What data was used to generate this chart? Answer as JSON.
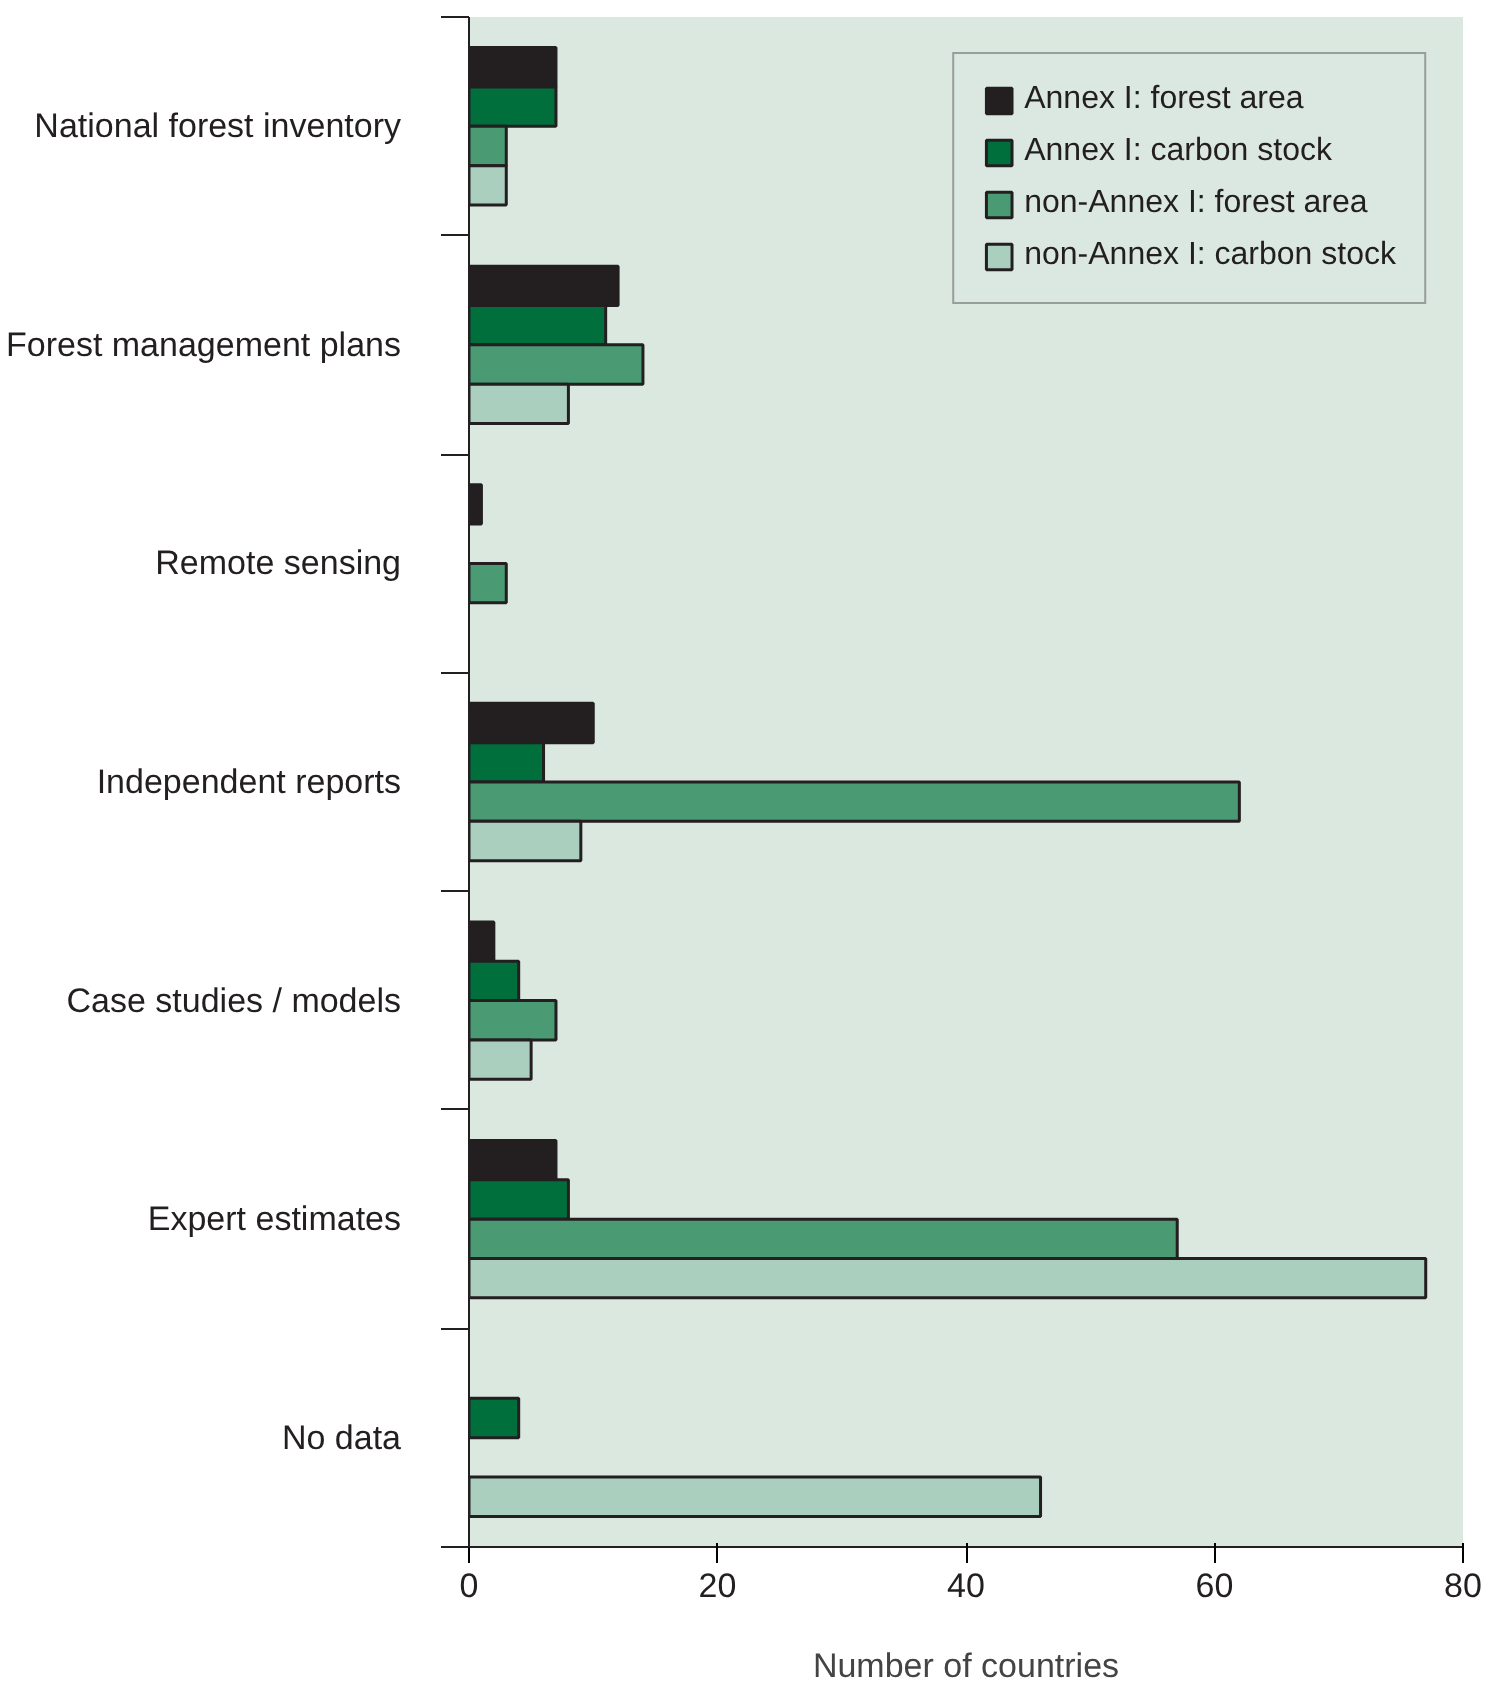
{
  "chart_data": {
    "type": "bar",
    "orientation": "horizontal",
    "xlabel": "Number of countries",
    "categories": [
      "National forest inventory",
      "Forest management plans",
      "Remote sensing",
      "Independent reports",
      "Case studies / models",
      "Expert estimates",
      "No data"
    ],
    "series": [
      {
        "name": "Annex I: forest area",
        "color": "#231f20",
        "values": [
          7,
          12,
          1,
          10,
          2,
          7,
          null
        ]
      },
      {
        "name": "Annex I: carbon stock",
        "color": "#006f3c",
        "values": [
          7,
          11,
          null,
          6,
          4,
          8,
          4
        ]
      },
      {
        "name": "non-Annex I: forest area",
        "color": "#4a9a74",
        "values": [
          3,
          14,
          3,
          62,
          7,
          57,
          null
        ]
      },
      {
        "name": "non-Annex I: carbon stock",
        "color": "#abcfbe",
        "values": [
          3,
          8,
          null,
          9,
          5,
          77,
          46
        ]
      }
    ],
    "xlim": [
      0,
      80
    ],
    "xticks": [
      0,
      20,
      40,
      60,
      80
    ],
    "grid": false,
    "legend": "top right"
  }
}
